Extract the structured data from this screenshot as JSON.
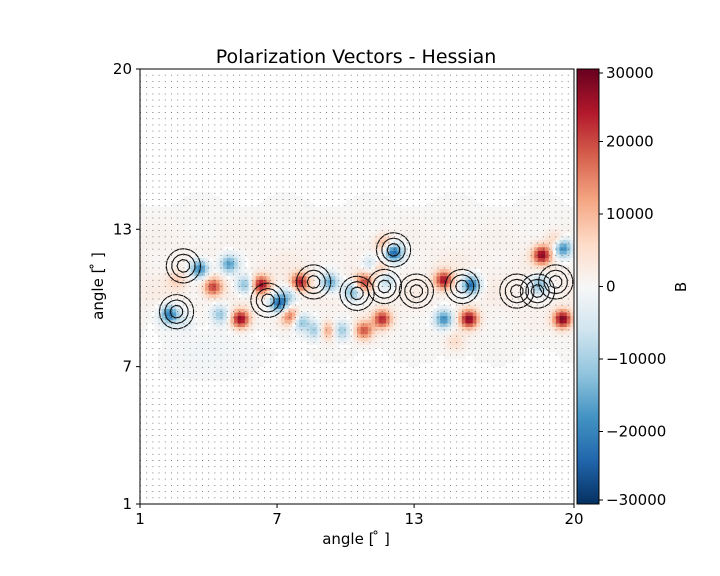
{
  "chart_data": {
    "type": "heatmap",
    "title": "Polarization Vectors - Hessian",
    "xlabel": "angle [ ̊ ]",
    "ylabel": "angle [ ̊ ]",
    "xlim": [
      1,
      20
    ],
    "ylim": [
      1,
      20
    ],
    "x_ticks": [
      "1",
      "7",
      "13",
      "20"
    ],
    "x_tick_values": [
      1,
      7,
      13,
      20
    ],
    "y_ticks": [
      "1",
      "7",
      "13",
      "20"
    ],
    "y_tick_values": [
      1,
      7,
      13,
      20
    ],
    "colorbar": {
      "label": "B",
      "colormap": "RdBu_r",
      "range": [
        -30000,
        30000
      ],
      "ticks": [
        "30000",
        "20000",
        "10000",
        "0",
        "−10000",
        "−20000",
        "−30000"
      ],
      "tick_values": [
        30000,
        20000,
        10000,
        0,
        -10000,
        -20000,
        -30000
      ]
    },
    "band": {
      "y_center": 10.8,
      "y_halfwidth": 2.3,
      "background_level": 2500
    },
    "blobs": [
      {
        "x": 2.3,
        "y": 9.3,
        "v": -22000
      },
      {
        "x": 3.0,
        "y": 9.0,
        "v": -4000
      },
      {
        "x": 2.6,
        "y": 10.8,
        "v": 6000
      },
      {
        "x": 3.6,
        "y": 11.3,
        "v": -22000
      },
      {
        "x": 4.2,
        "y": 10.5,
        "v": 20000
      },
      {
        "x": 4.5,
        "y": 9.3,
        "v": -12000
      },
      {
        "x": 4.9,
        "y": 11.5,
        "v": -18000
      },
      {
        "x": 5.4,
        "y": 9.1,
        "v": 27000
      },
      {
        "x": 5.6,
        "y": 10.6,
        "v": -15000
      },
      {
        "x": 6.3,
        "y": 10.6,
        "v": 25000
      },
      {
        "x": 7.1,
        "y": 9.8,
        "v": -25000
      },
      {
        "x": 7.6,
        "y": 9.2,
        "v": 18000
      },
      {
        "x": 7.6,
        "y": 10.2,
        "v": -8000
      },
      {
        "x": 8.0,
        "y": 9.0,
        "v": -15000
      },
      {
        "x": 8.0,
        "y": 10.7,
        "v": 24000
      },
      {
        "x": 8.7,
        "y": 8.6,
        "v": -12000
      },
      {
        "x": 9.2,
        "y": 8.6,
        "v": 14000
      },
      {
        "x": 9.3,
        "y": 10.7,
        "v": -18000
      },
      {
        "x": 9.8,
        "y": 8.6,
        "v": -12000
      },
      {
        "x": 10.3,
        "y": 10.3,
        "v": -15000
      },
      {
        "x": 10.8,
        "y": 10.7,
        "v": 20000
      },
      {
        "x": 10.8,
        "y": 8.6,
        "v": 18000
      },
      {
        "x": 11.1,
        "y": 11.5,
        "v": -9000
      },
      {
        "x": 11.6,
        "y": 9.1,
        "v": 22000
      },
      {
        "x": 11.5,
        "y": 11.3,
        "v": 8000
      },
      {
        "x": 12.1,
        "y": 12.0,
        "v": -26000
      },
      {
        "x": 11.8,
        "y": 10.8,
        "v": -10000
      },
      {
        "x": 14.3,
        "y": 10.8,
        "v": 24000
      },
      {
        "x": 14.3,
        "y": 9.1,
        "v": -20000
      },
      {
        "x": 15.4,
        "y": 9.1,
        "v": 27000
      },
      {
        "x": 15.5,
        "y": 10.6,
        "v": -24000
      },
      {
        "x": 18.6,
        "y": 11.9,
        "v": 26000
      },
      {
        "x": 18.5,
        "y": 10.6,
        "v": -14000
      },
      {
        "x": 19.5,
        "y": 12.2,
        "v": -22000
      },
      {
        "x": 19.5,
        "y": 9.1,
        "v": 28000
      },
      {
        "x": 19.2,
        "y": 12.5,
        "v": 8000
      },
      {
        "x": 14.8,
        "y": 8.1,
        "v": 5000
      },
      {
        "x": 11.7,
        "y": 12.4,
        "v": 10000
      }
    ],
    "vector_rings": [
      {
        "x": 2.9,
        "y": 11.4
      },
      {
        "x": 2.6,
        "y": 9.4
      },
      {
        "x": 6.6,
        "y": 9.9
      },
      {
        "x": 8.6,
        "y": 10.7
      },
      {
        "x": 10.5,
        "y": 10.2
      },
      {
        "x": 11.7,
        "y": 10.5
      },
      {
        "x": 13.1,
        "y": 10.3
      },
      {
        "x": 15.1,
        "y": 10.5
      },
      {
        "x": 17.5,
        "y": 10.3
      },
      {
        "x": 18.4,
        "y": 10.3
      },
      {
        "x": 12.1,
        "y": 12.1
      },
      {
        "x": 19.2,
        "y": 10.7
      }
    ]
  }
}
